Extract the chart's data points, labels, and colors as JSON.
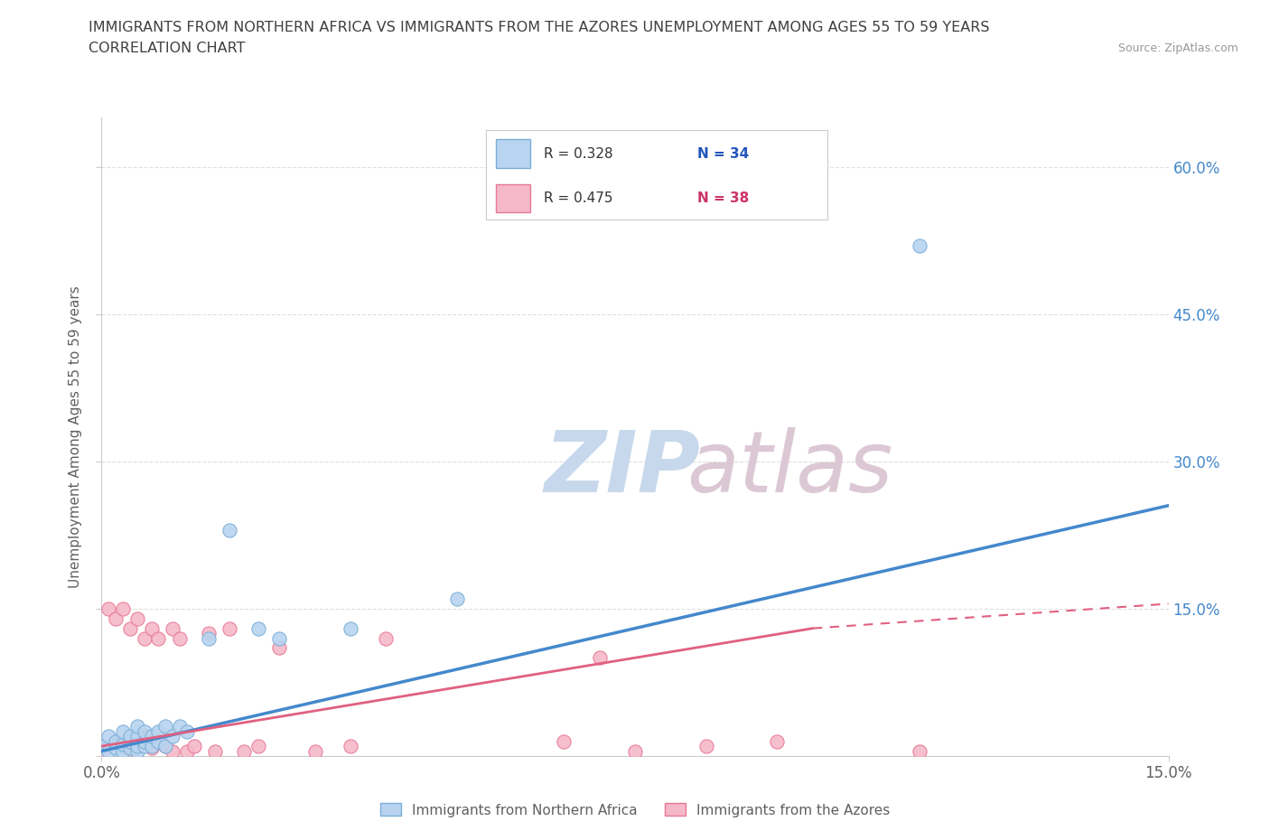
{
  "title_line1": "IMMIGRANTS FROM NORTHERN AFRICA VS IMMIGRANTS FROM THE AZORES UNEMPLOYMENT AMONG AGES 55 TO 59 YEARS",
  "title_line2": "CORRELATION CHART",
  "source": "Source: ZipAtlas.com",
  "ylabel": "Unemployment Among Ages 55 to 59 years",
  "xlim": [
    0.0,
    0.15
  ],
  "ylim": [
    0.0,
    0.65
  ],
  "y_tick_positions": [
    0.0,
    0.15,
    0.3,
    0.45,
    0.6
  ],
  "y_tick_labels_right": [
    "",
    "15.0%",
    "30.0%",
    "45.0%",
    "60.0%"
  ],
  "x_tick_positions": [
    0.0,
    0.15
  ],
  "x_tick_labels": [
    "0.0%",
    "15.0%"
  ],
  "legend_r1": "R = 0.328",
  "legend_n1": "N = 34",
  "legend_r2": "R = 0.475",
  "legend_n2": "N = 38",
  "series1_label": "Immigrants from Northern Africa",
  "series2_label": "Immigrants from the Azores",
  "series1_color": "#b8d4f0",
  "series2_color": "#f5b8c8",
  "series1_edge_color": "#7aaed6",
  "series2_edge_color": "#e87898",
  "series1_line_color": "#4488cc",
  "series2_line_color": "#e06080",
  "title_color": "#404040",
  "axis_label_color": "#606060",
  "tick_color_right": "#4488cc",
  "background_color": "#ffffff",
  "grid_color": "#cccccc",
  "watermark_zip_color": "#c8d8ec",
  "watermark_atlas_color": "#dcc8d4",
  "legend_text_color_blue": "#2255bb",
  "legend_text_color_pink": "#cc3366",
  "series1_x": [
    0.0,
    0.001,
    0.001,
    0.002,
    0.002,
    0.003,
    0.003,
    0.003,
    0.004,
    0.004,
    0.004,
    0.005,
    0.005,
    0.005,
    0.005,
    0.006,
    0.006,
    0.006,
    0.007,
    0.007,
    0.008,
    0.008,
    0.009,
    0.009,
    0.01,
    0.011,
    0.012,
    0.015,
    0.018,
    0.022,
    0.025,
    0.035,
    0.05,
    0.115
  ],
  "series1_y": [
    0.01,
    0.005,
    0.02,
    0.008,
    0.015,
    0.005,
    0.012,
    0.025,
    0.008,
    0.015,
    0.02,
    0.005,
    0.01,
    0.02,
    0.03,
    0.01,
    0.015,
    0.025,
    0.01,
    0.02,
    0.015,
    0.025,
    0.01,
    0.03,
    0.02,
    0.03,
    0.025,
    0.12,
    0.23,
    0.13,
    0.12,
    0.13,
    0.16,
    0.52
  ],
  "series2_x": [
    0.0,
    0.001,
    0.001,
    0.002,
    0.002,
    0.003,
    0.003,
    0.004,
    0.004,
    0.005,
    0.005,
    0.006,
    0.006,
    0.007,
    0.007,
    0.008,
    0.008,
    0.009,
    0.01,
    0.01,
    0.011,
    0.012,
    0.013,
    0.015,
    0.016,
    0.018,
    0.02,
    0.022,
    0.025,
    0.03,
    0.035,
    0.04,
    0.065,
    0.07,
    0.075,
    0.085,
    0.095,
    0.115
  ],
  "series2_y": [
    0.005,
    0.01,
    0.15,
    0.015,
    0.14,
    0.01,
    0.15,
    0.005,
    0.13,
    0.01,
    0.14,
    0.02,
    0.12,
    0.008,
    0.13,
    0.015,
    0.12,
    0.01,
    0.005,
    0.13,
    0.12,
    0.005,
    0.01,
    0.125,
    0.005,
    0.13,
    0.005,
    0.01,
    0.11,
    0.005,
    0.01,
    0.12,
    0.015,
    0.1,
    0.005,
    0.01,
    0.015,
    0.005
  ],
  "regline1_x0": 0.0,
  "regline1_y0": 0.005,
  "regline1_x1": 0.15,
  "regline1_y1": 0.255,
  "regline2_x0": 0.0,
  "regline2_y0": 0.01,
  "regline2_x1": 0.1,
  "regline2_y1": 0.13,
  "regline2_dash_x0": 0.1,
  "regline2_dash_y0": 0.13,
  "regline2_dash_x1": 0.15,
  "regline2_dash_y1": 0.155
}
